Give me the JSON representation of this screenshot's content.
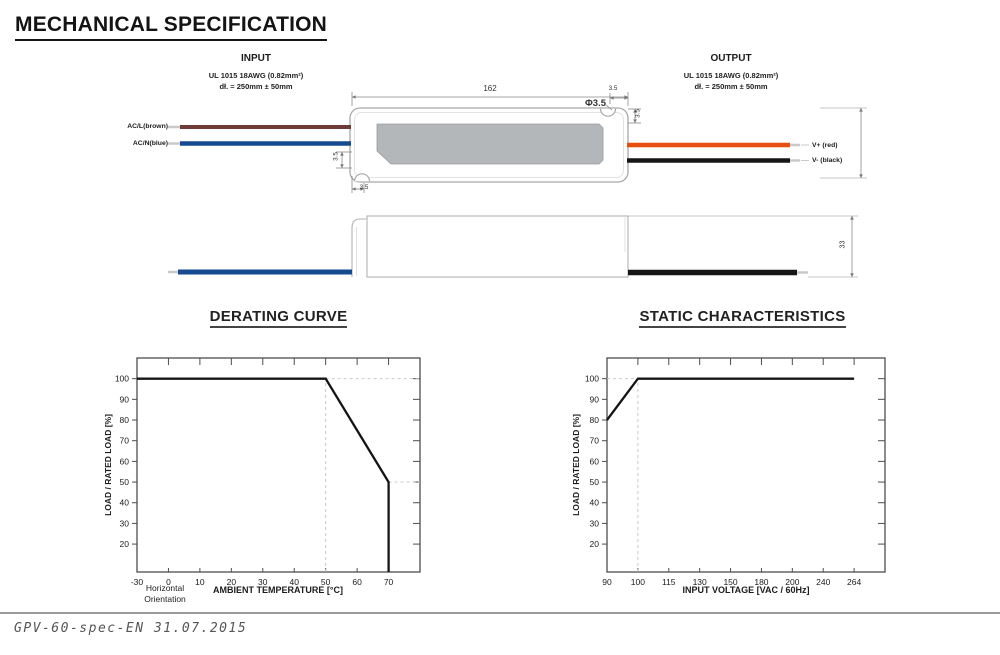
{
  "page": {
    "title": "MECHANICAL SPECIFICATION",
    "footer": "GPV-60-spec-EN 31.07.2015"
  },
  "drawing": {
    "input": {
      "heading": "INPUT",
      "spec1": "UL 1015 18AWG (0.82mm²)",
      "spec2": "dł. = 250mm ± 50mm"
    },
    "output": {
      "heading": "OUTPUT",
      "spec1": "UL 1015 18AWG (0.82mm²)",
      "spec2": "dł. = 250mm ± 50mm"
    },
    "wires": {
      "ac_l": {
        "label": "AC/L(brown)",
        "color": "#6f3c38"
      },
      "ac_n": {
        "label": "AC/N(blue)",
        "color": "#154a90"
      },
      "v_plus": {
        "label": "V+ (red)",
        "color": "#e84e0f"
      },
      "v_minus": {
        "label": "V- (black)",
        "color": "#161616"
      }
    },
    "dimensions": {
      "length": "162",
      "hole_dia": "Φ3.5",
      "hole_off_x": "3.5",
      "hole_off_y": "3.5",
      "corner_off_x": "3.5",
      "corner_off_y": "3.5",
      "height": "33"
    }
  },
  "chart_data": [
    {
      "type": "line",
      "title": "DERATING CURVE",
      "xlabel": "AMBIENT TEMPERATURE [°C]",
      "ylabel": "LOAD / RATED LOAD [%]",
      "note": [
        "Horizontal",
        "Orientation"
      ],
      "x_ticks": [
        -30,
        0,
        10,
        20,
        30,
        40,
        50,
        60,
        70
      ],
      "y_ticks": [
        100,
        90,
        80,
        70,
        60,
        50,
        40,
        30,
        20
      ],
      "xlim": [
        -30,
        80
      ],
      "ylim": [
        6.5,
        110
      ],
      "grid": false,
      "series": [
        {
          "name": "load-vs-ambient-temperature",
          "points": [
            [
              -30,
              100
            ],
            [
              50,
              100
            ],
            [
              70,
              50
            ],
            [
              70,
              6.5
            ]
          ]
        }
      ],
      "guides": [
        {
          "x1": 50,
          "y1": 100,
          "x2": 80,
          "y2": 100
        },
        {
          "x1": 50,
          "y1": 6.5,
          "x2": 50,
          "y2": 100
        },
        {
          "x1": 70,
          "y1": 50,
          "x2": 80,
          "y2": 50
        }
      ]
    },
    {
      "type": "line",
      "title": "STATIC CHARACTERISTICS",
      "xlabel": "INPUT VOLTAGE [VAC / 60Hz]",
      "ylabel": "LOAD / RATED LOAD [%]",
      "x_ticks": [
        90,
        100,
        115,
        130,
        150,
        180,
        200,
        240,
        264
      ],
      "y_ticks": [
        100,
        90,
        80,
        70,
        60,
        50,
        40,
        30,
        20
      ],
      "xlim": [
        90,
        288
      ],
      "ylim": [
        6.5,
        110
      ],
      "grid": false,
      "series": [
        {
          "name": "load-vs-input-voltage",
          "points": [
            [
              90,
              80
            ],
            [
              100,
              100
            ],
            [
              264,
              100
            ]
          ]
        }
      ],
      "guides": [
        {
          "x1": 90,
          "y1": 100,
          "x2": 100,
          "y2": 100
        },
        {
          "x1": 100,
          "y1": 6.5,
          "x2": 100,
          "y2": 100
        }
      ]
    }
  ]
}
